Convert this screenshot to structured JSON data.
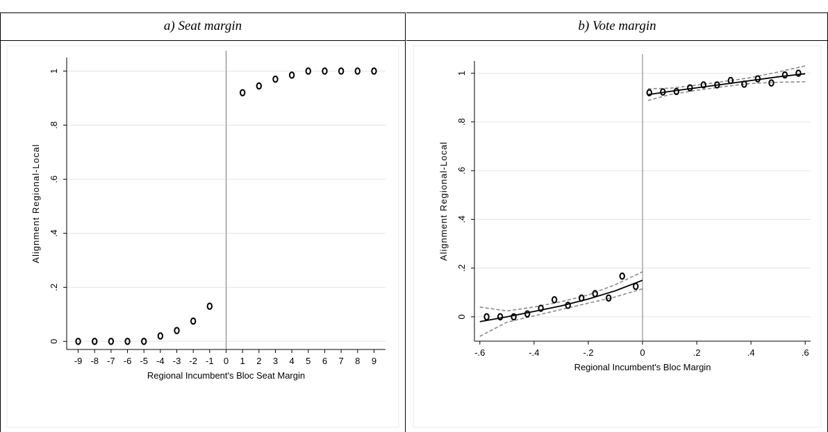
{
  "chart_data": [
    {
      "type": "scatter",
      "title": "a) Seat margin",
      "xlabel": "Regional Incumbent's Bloc Seat Margin",
      "ylabel": "Alignment Regional-Local",
      "xlim": [
        -9.7,
        9.7
      ],
      "ylim": [
        -0.03,
        1.05
      ],
      "xticks": [
        -9,
        -8,
        -7,
        -6,
        -5,
        -4,
        -3,
        -2,
        -1,
        0,
        1,
        2,
        3,
        4,
        5,
        6,
        7,
        8,
        9
      ],
      "xtick_labels": [
        "-9",
        "-8",
        "-7",
        "-6",
        "-5",
        "-4",
        "-3",
        "-2",
        "-1",
        "0",
        "1",
        "2",
        "3",
        "4",
        "5",
        "6",
        "7",
        "8",
        "9"
      ],
      "yticks": [
        0,
        0.2,
        0.4,
        0.6,
        0.8,
        1
      ],
      "ytick_labels": [
        "0",
        ".2",
        ".4",
        ".6",
        ".8",
        "1"
      ],
      "grid": true,
      "vline": 0,
      "points": [
        [
          -9,
          0.0
        ],
        [
          -8,
          0.0
        ],
        [
          -7,
          0.0
        ],
        [
          -6,
          0.0
        ],
        [
          -5,
          0.0
        ],
        [
          -4,
          0.02
        ],
        [
          -3,
          0.04
        ],
        [
          -2,
          0.075
        ],
        [
          -1,
          0.13
        ],
        [
          1,
          0.92
        ],
        [
          2,
          0.945
        ],
        [
          3,
          0.97
        ],
        [
          4,
          0.985
        ],
        [
          5,
          1.0
        ],
        [
          6,
          1.0
        ],
        [
          7,
          1.0
        ],
        [
          8,
          1.0
        ],
        [
          9,
          1.0
        ]
      ]
    },
    {
      "type": "scatter",
      "title": "b) Vote margin",
      "xlabel": "Regional Incumbent's Bloc Margin",
      "ylabel": "Alignment Regional-Local",
      "xlim": [
        -0.62,
        0.62
      ],
      "ylim": [
        -0.1,
        1.05
      ],
      "xticks": [
        -0.6,
        -0.4,
        -0.2,
        0,
        0.2,
        0.4,
        0.6
      ],
      "xtick_labels": [
        "-.6",
        "-.4",
        "-.2",
        "0",
        ".2",
        ".4",
        ".6"
      ],
      "yticks": [
        0,
        0.2,
        0.4,
        0.6,
        0.8,
        1
      ],
      "ytick_labels": [
        "0",
        ".2",
        ".4",
        ".6",
        ".8",
        "1"
      ],
      "grid": true,
      "vline": 0,
      "points": [
        [
          -0.575,
          0.0
        ],
        [
          -0.525,
          0.0
        ],
        [
          -0.475,
          0.0
        ],
        [
          -0.425,
          0.012
        ],
        [
          -0.375,
          0.035
        ],
        [
          -0.325,
          0.07
        ],
        [
          -0.275,
          0.047
        ],
        [
          -0.225,
          0.077
        ],
        [
          -0.175,
          0.095
        ],
        [
          -0.125,
          0.077
        ],
        [
          -0.075,
          0.167
        ],
        [
          -0.025,
          0.125
        ],
        [
          0.025,
          0.92
        ],
        [
          0.075,
          0.923
        ],
        [
          0.125,
          0.925
        ],
        [
          0.175,
          0.94
        ],
        [
          0.225,
          0.952
        ],
        [
          0.275,
          0.952
        ],
        [
          0.325,
          0.97
        ],
        [
          0.375,
          0.955
        ],
        [
          0.425,
          0.977
        ],
        [
          0.475,
          0.96
        ],
        [
          0.525,
          0.993
        ],
        [
          0.575,
          1.0
        ]
      ],
      "fit_left": {
        "x": [
          -0.6,
          -0.5,
          -0.4,
          -0.3,
          -0.2,
          -0.1,
          0.0
        ],
        "y": [
          -0.02,
          0.0,
          0.022,
          0.045,
          0.073,
          0.107,
          0.15
        ],
        "ci_low": [
          -0.08,
          -0.022,
          0.004,
          0.03,
          0.056,
          0.082,
          0.115
        ],
        "ci_high": [
          0.04,
          0.024,
          0.04,
          0.062,
          0.09,
          0.132,
          0.185
        ]
      },
      "fit_right": {
        "x": [
          0.02,
          0.1,
          0.2,
          0.3,
          0.4,
          0.5,
          0.6
        ],
        "y": [
          0.912,
          0.925,
          0.94,
          0.955,
          0.97,
          0.985,
          0.998
        ],
        "ci_low": [
          0.888,
          0.912,
          0.93,
          0.945,
          0.958,
          0.963,
          0.965
        ],
        "ci_high": [
          0.936,
          0.938,
          0.951,
          0.966,
          0.982,
          1.005,
          1.03
        ]
      }
    }
  ]
}
